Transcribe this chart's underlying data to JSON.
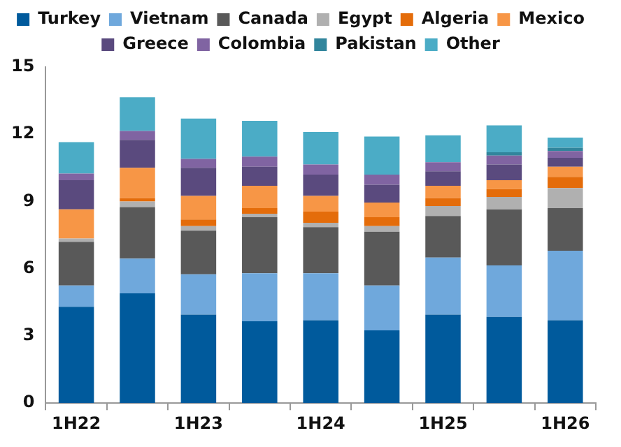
{
  "chart_data": {
    "type": "bar",
    "stacked": true,
    "legend": "top",
    "grid": false,
    "categories": [
      "1H22",
      null,
      "1H23",
      null,
      "1H24",
      null,
      "1H25",
      null,
      "1H26"
    ],
    "ylim": [
      0,
      15
    ],
    "yticks": [
      0,
      3,
      6,
      9,
      12,
      15
    ],
    "series": [
      {
        "name": "Turkey",
        "color": "#005a9c",
        "values": [
          4.3,
          4.9,
          3.95,
          3.65,
          3.7,
          3.25,
          3.95,
          3.85,
          3.7
        ]
      },
      {
        "name": "Vietnam",
        "color": "#6fa8dc",
        "values": [
          0.95,
          1.55,
          1.8,
          2.15,
          2.1,
          2.0,
          2.55,
          2.3,
          3.1
        ]
      },
      {
        "name": "Canada",
        "color": "#595959",
        "values": [
          1.95,
          2.3,
          1.95,
          2.5,
          2.05,
          2.4,
          1.85,
          2.5,
          1.9
        ]
      },
      {
        "name": "Egypt",
        "color": "#b0b0b0",
        "values": [
          0.15,
          0.25,
          0.2,
          0.15,
          0.2,
          0.25,
          0.45,
          0.55,
          0.9
        ]
      },
      {
        "name": "Algeria",
        "color": "#e46c0a",
        "values": [
          0,
          0.15,
          0.3,
          0.25,
          0.5,
          0.4,
          0.35,
          0.35,
          0.5
        ]
      },
      {
        "name": "Mexico",
        "color": "#f79646",
        "values": [
          1.3,
          1.35,
          1.05,
          1.0,
          0.7,
          0.65,
          0.55,
          0.4,
          0.45
        ]
      },
      {
        "name": "Greece",
        "color": "#5a4a7e",
        "values": [
          1.3,
          1.25,
          1.25,
          0.85,
          0.95,
          0.8,
          0.65,
          0.7,
          0.4
        ]
      },
      {
        "name": "Colombia",
        "color": "#8064a2",
        "values": [
          0.3,
          0.4,
          0.4,
          0.45,
          0.45,
          0.45,
          0.4,
          0.4,
          0.3
        ]
      },
      {
        "name": "Pakistan",
        "color": "#31859c",
        "values": [
          0,
          0,
          0,
          0,
          0,
          0,
          0,
          0.15,
          0.15
        ]
      },
      {
        "name": "Other",
        "color": "#4bacc6",
        "values": [
          1.4,
          1.5,
          1.8,
          1.6,
          1.45,
          1.7,
          1.2,
          1.2,
          0.45
        ]
      }
    ]
  }
}
